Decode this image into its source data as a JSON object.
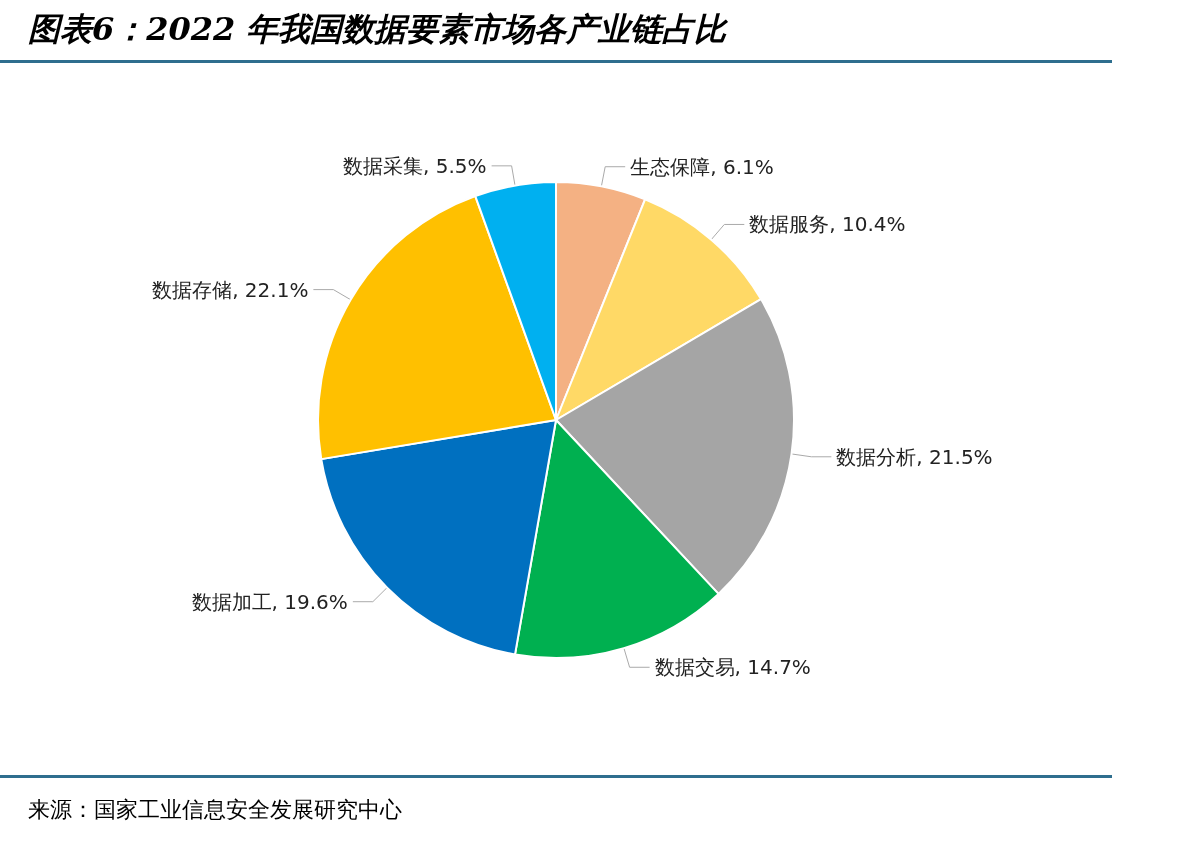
{
  "chart_data": {
    "type": "pie",
    "title": "图表6：2022 年我国数据要素市场各产业链占比",
    "categories": [
      "生态保障",
      "数据服务",
      "数据分析",
      "数据交易",
      "数据加工",
      "数据存储",
      "数据采集"
    ],
    "values": [
      6.1,
      10.4,
      21.5,
      14.7,
      19.6,
      22.1,
      5.5
    ],
    "value_labels": [
      "6.1%",
      "10.4%",
      "21.5%",
      "14.7%",
      "19.6%",
      "22.1%",
      "5.5%"
    ],
    "colors": [
      "#f4b183",
      "#ffd966",
      "#a5a5a5",
      "#00b050",
      "#0070c0",
      "#ffc000",
      "#00b0f0"
    ],
    "legend": false,
    "annotations": [
      "来源：国家工业信息安全发展研究中心"
    ]
  }
}
